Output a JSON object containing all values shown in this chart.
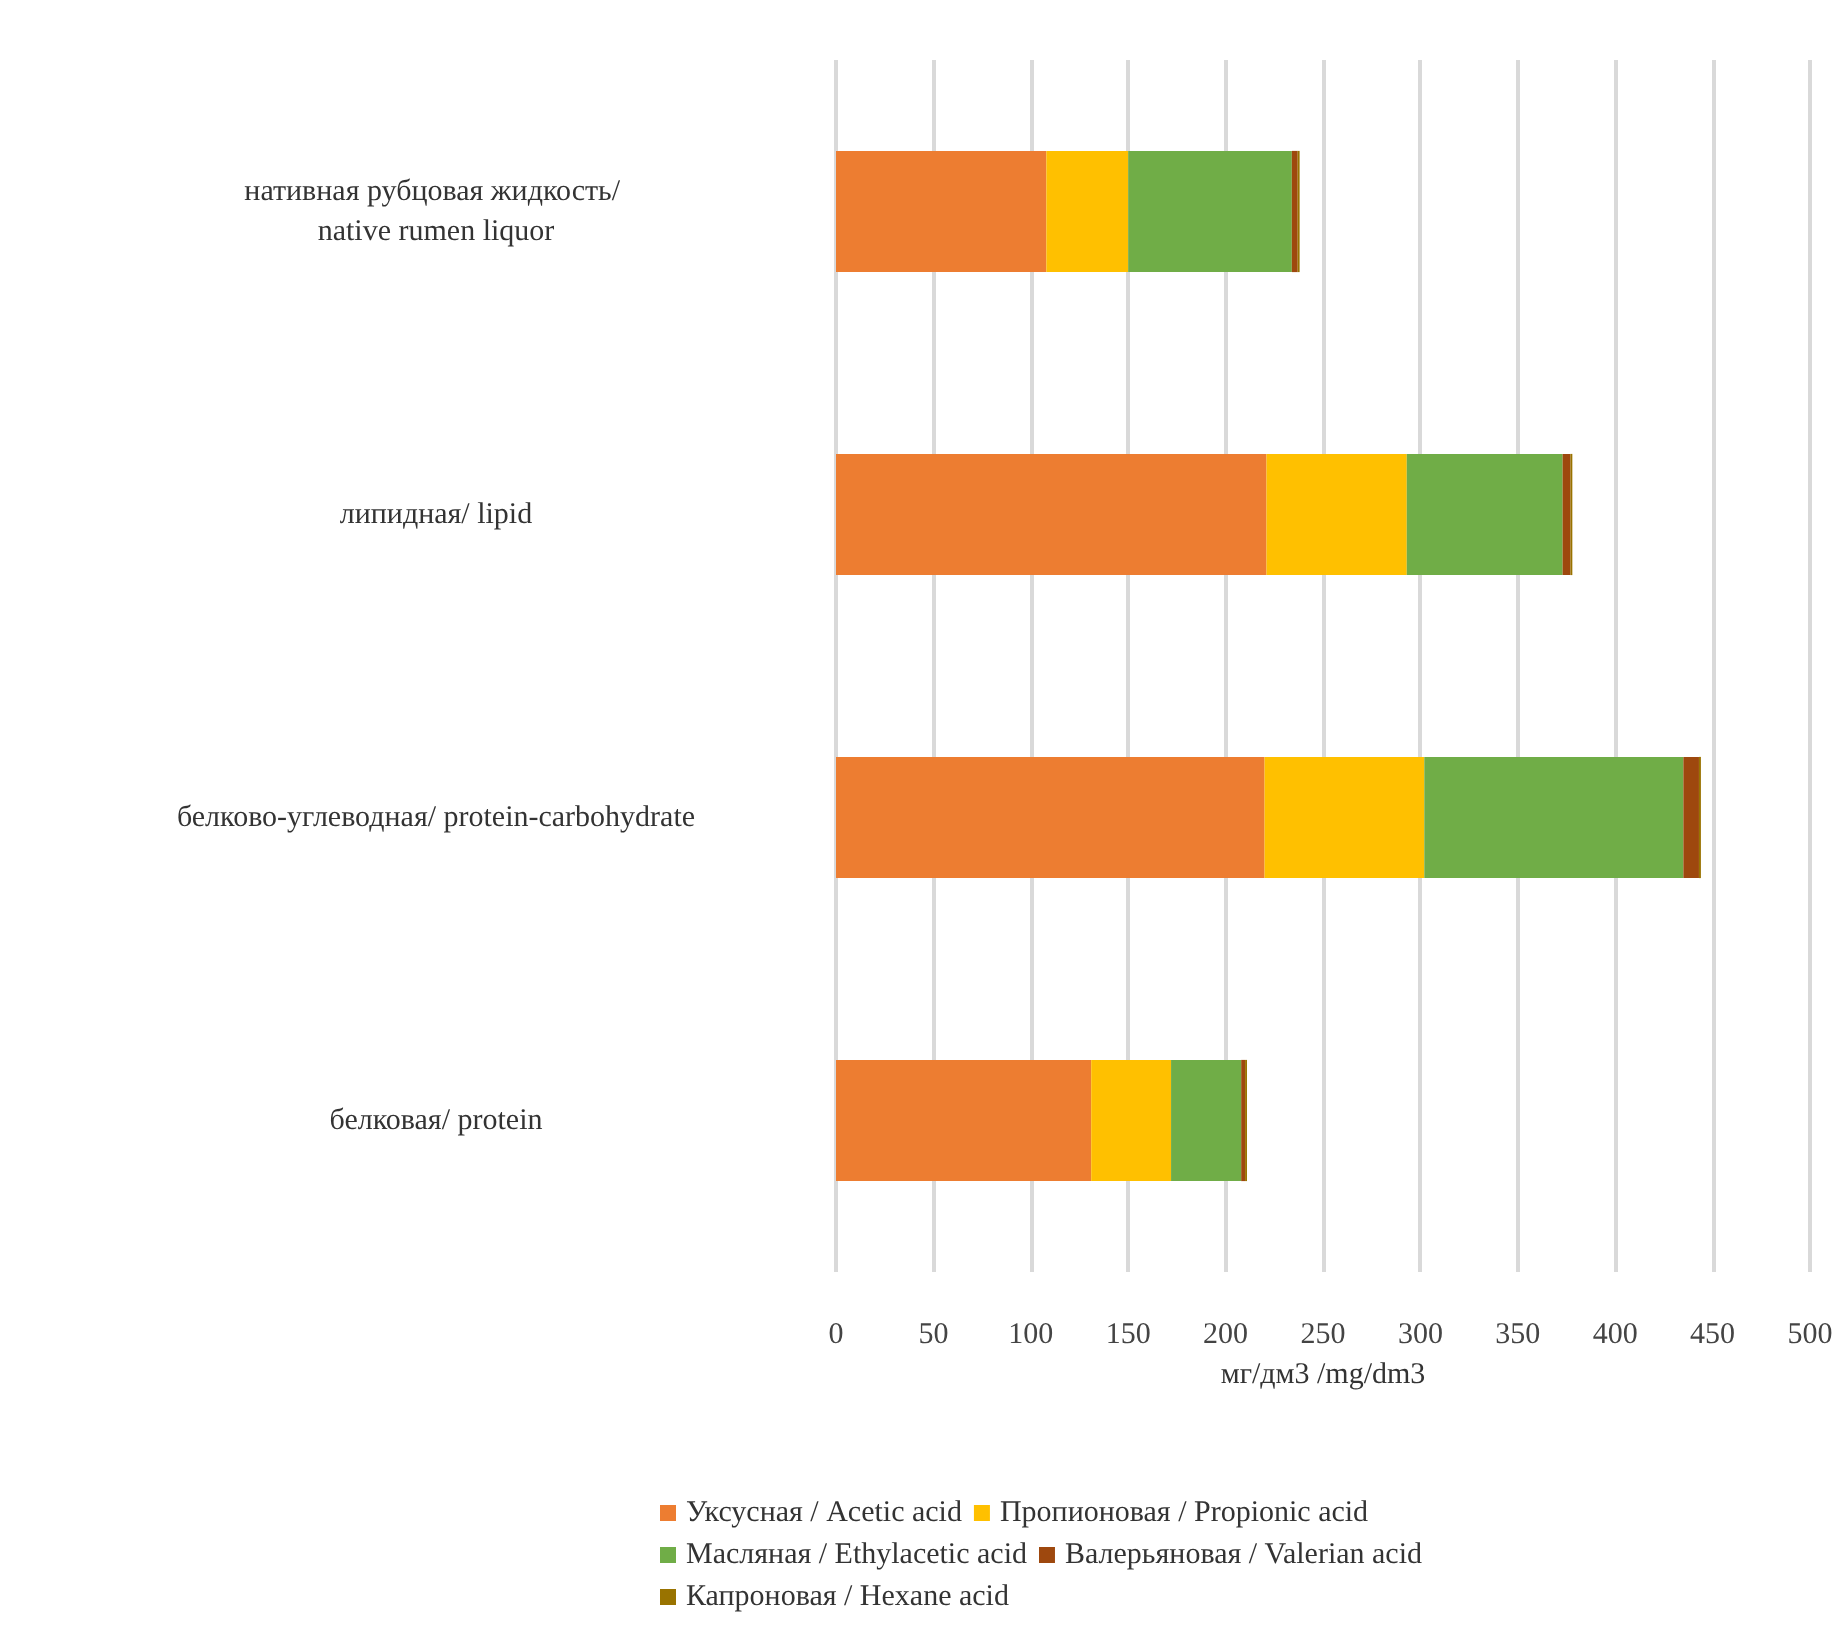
{
  "chart_data": {
    "type": "bar",
    "orientation": "horizontal",
    "stacked": true,
    "categories": [
      "нативная рубцовая жидкость/ native rumen liquor",
      "липидная/ lipid",
      "белково-углеводная/ protein-carbohydrate",
      "белковая/ protein"
    ],
    "series": [
      {
        "name": "Уксусная / Acetic acid",
        "color": "#ed7d31",
        "values": [
          108,
          221,
          220,
          131
        ]
      },
      {
        "name": "Пропионовая / Propionic acid",
        "color": "#ffc000",
        "values": [
          42,
          72,
          82,
          41
        ]
      },
      {
        "name": "Масляная / Ethylacetic acid",
        "color": "#70ad47",
        "values": [
          84,
          80,
          133,
          36
        ]
      },
      {
        "name": "Валерьяновая / Valerian acid",
        "color": "#9e480e",
        "values": [
          3,
          4,
          8,
          2
        ]
      },
      {
        "name": "Капроновая / Hexane acid",
        "color": "#997300",
        "values": [
          1,
          1,
          1,
          1
        ]
      }
    ],
    "xlabel": "мг/дм3 /mg/dm3",
    "xlim": [
      0,
      500
    ],
    "xticks": [
      0,
      50,
      100,
      150,
      200,
      250,
      300,
      350,
      400,
      450,
      500
    ],
    "grid": "x",
    "legend": "bottom"
  }
}
